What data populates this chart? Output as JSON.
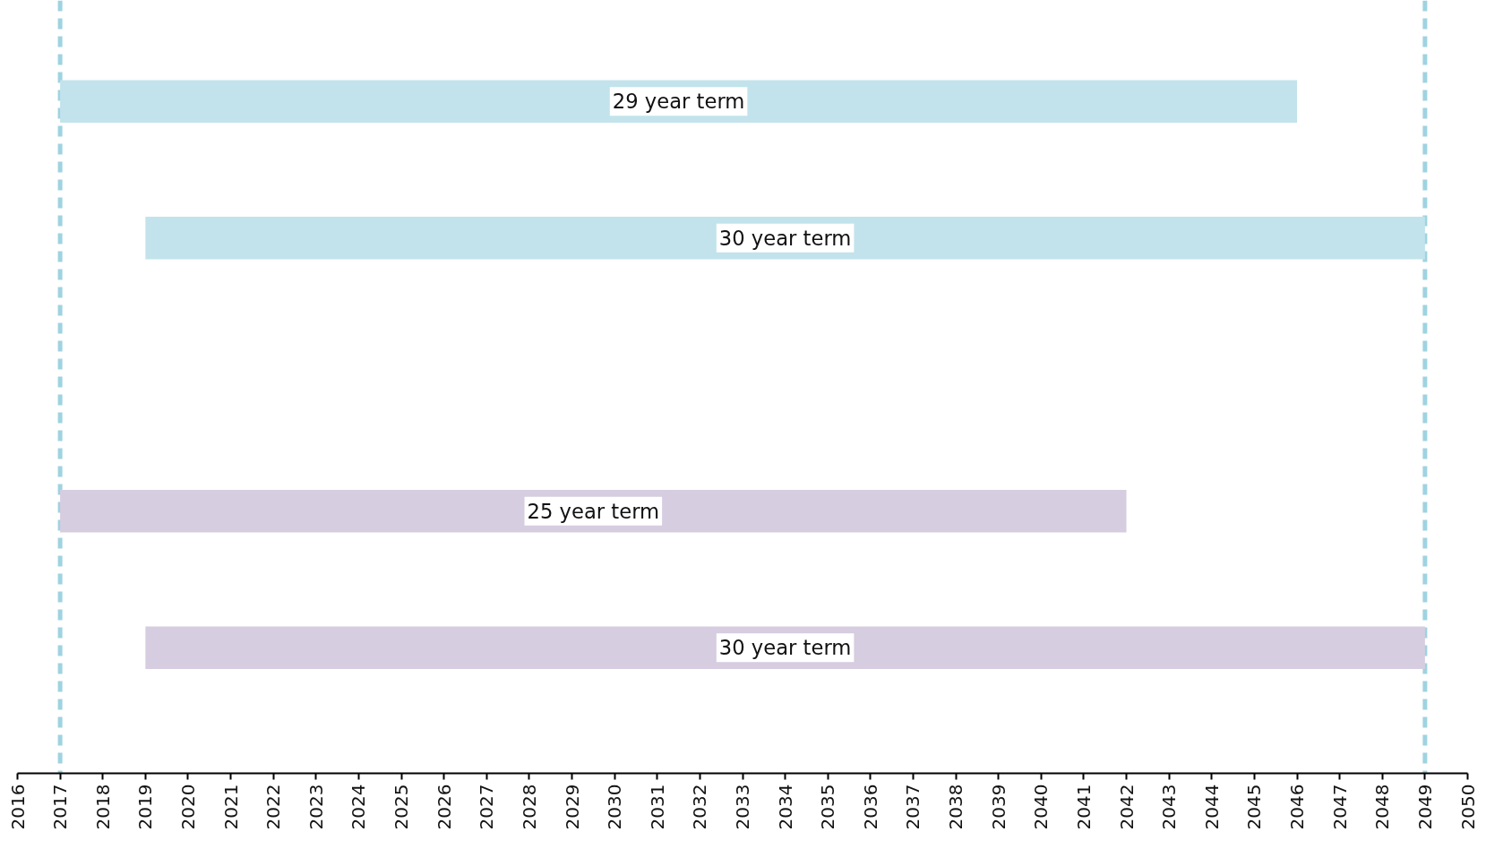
{
  "chart_data": {
    "type": "bar",
    "orientation": "horizontal",
    "categories": [
      null,
      null,
      null,
      null,
      null
    ],
    "values": [
      29,
      30,
      null,
      25,
      30
    ],
    "base": [
      2017,
      2019,
      null,
      2017,
      2019
    ],
    "colors": [
      "#c2e3eb",
      "#c2e3eb",
      "#c2e3eb",
      "#d6cde0",
      "#d6cde0"
    ],
    "value_labels": [
      "29 year term",
      "30 year term",
      null,
      "25 year term",
      "30 year term"
    ],
    "xlim": [
      2016,
      2050
    ],
    "xticks": [
      2016,
      2017,
      2018,
      2019,
      2020,
      2021,
      2022,
      2023,
      2024,
      2025,
      2026,
      2027,
      2028,
      2029,
      2030,
      2031,
      2032,
      2033,
      2034,
      2035,
      2036,
      2037,
      2038,
      2039,
      2040,
      2041,
      2042,
      2043,
      2044,
      2045,
      2046,
      2047,
      2048,
      2049,
      2050
    ],
    "ref_lines": [
      {
        "axis": "x",
        "value": 2017,
        "color": "#9fd3e0",
        "line_style": "dashed"
      },
      {
        "axis": "x",
        "value": 2049,
        "color": "#9fd3e0",
        "line_style": "dashed"
      }
    ],
    "tick_labels": "x",
    "grid": false
  }
}
